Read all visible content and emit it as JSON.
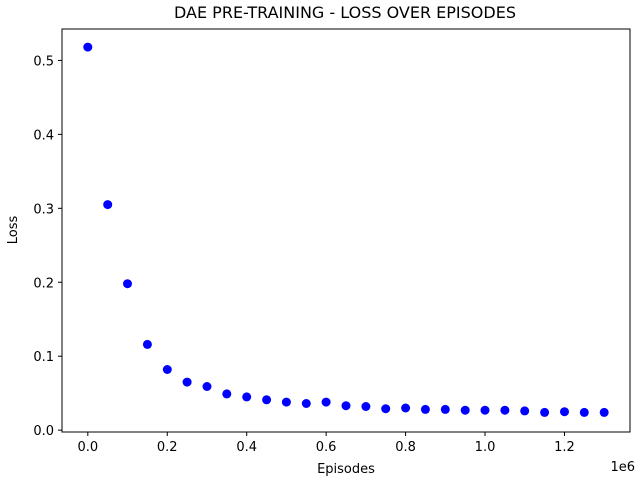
{
  "chart_data": {
    "type": "scatter",
    "title": "DAE PRE-TRAINING - LOSS OVER EPISODES",
    "xlabel": "Episodes",
    "ylabel": "Loss",
    "x_offset_label": "1e6",
    "x_scale": 1000000,
    "xlim": [
      -65000,
      1365000
    ],
    "ylim": [
      -0.0025,
      0.5425
    ],
    "x_ticks": [
      0,
      200000,
      400000,
      600000,
      800000,
      1000000,
      1200000
    ],
    "x_tick_labels": [
      "0.0",
      "0.2",
      "0.4",
      "0.6",
      "0.8",
      "1.0",
      "1.2"
    ],
    "y_ticks": [
      0.0,
      0.1,
      0.2,
      0.3,
      0.4,
      0.5
    ],
    "y_tick_labels": [
      "0.0",
      "0.1",
      "0.2",
      "0.3",
      "0.4",
      "0.5"
    ],
    "grid": false,
    "marker_color": "#0000ff",
    "x": [
      0,
      50000,
      100000,
      150000,
      200000,
      250000,
      300000,
      350000,
      400000,
      450000,
      500000,
      550000,
      600000,
      650000,
      700000,
      750000,
      800000,
      850000,
      900000,
      950000,
      1000000,
      1050000,
      1100000,
      1150000,
      1200000,
      1250000,
      1300000
    ],
    "y": [
      0.518,
      0.305,
      0.198,
      0.116,
      0.082,
      0.065,
      0.059,
      0.049,
      0.045,
      0.041,
      0.038,
      0.036,
      0.038,
      0.033,
      0.032,
      0.029,
      0.03,
      0.028,
      0.028,
      0.027,
      0.027,
      0.027,
      0.026,
      0.024,
      0.025,
      0.024,
      0.024
    ]
  }
}
